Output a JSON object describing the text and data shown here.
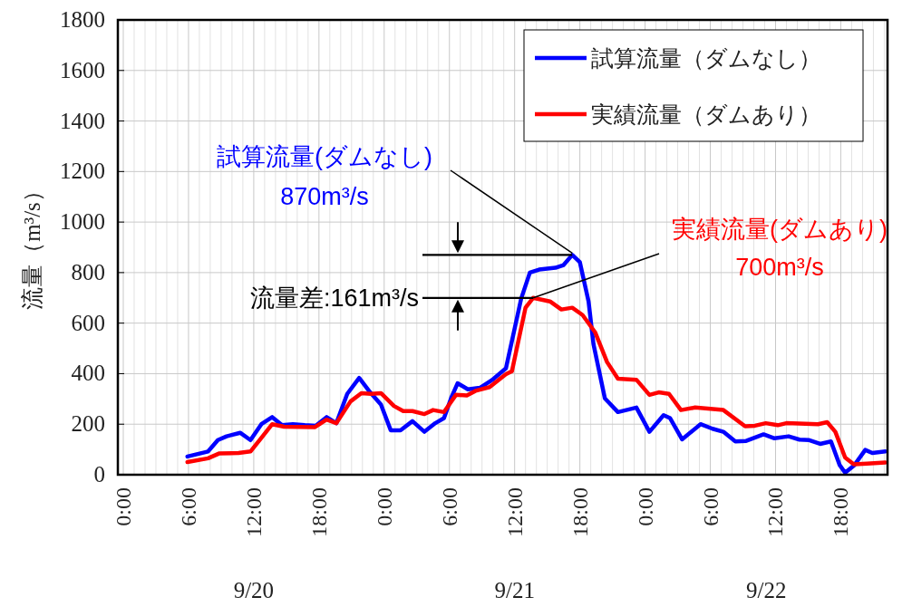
{
  "chart_data": {
    "type": "line",
    "ylabel": "流量（m³/s）",
    "xlim": [
      "--09-19T23:30",
      "--09-22T22:18"
    ],
    "ylim": [
      0,
      1800
    ],
    "yticks": [
      0,
      200,
      400,
      600,
      800,
      1000,
      1200,
      1400,
      1600,
      1800
    ],
    "xticks": [
      {
        "value": "--09-20T00:00",
        "label": "0:00"
      },
      {
        "value": "--09-20T01:00",
        "label": null
      },
      {
        "value": "--09-20T02:00",
        "label": null
      },
      {
        "value": "--09-20T03:00",
        "label": null
      },
      {
        "value": "--09-20T04:00",
        "label": null
      },
      {
        "value": "--09-20T05:00",
        "label": null
      },
      {
        "value": "--09-20T06:00",
        "label": "6:00"
      },
      {
        "value": "--09-20T07:00",
        "label": null
      },
      {
        "value": "--09-20T08:00",
        "label": null
      },
      {
        "value": "--09-20T09:00",
        "label": null
      },
      {
        "value": "--09-20T10:00",
        "label": null
      },
      {
        "value": "--09-20T11:00",
        "label": null
      },
      {
        "value": "--09-20T12:00",
        "label": "12:00"
      },
      {
        "value": "--09-20T13:00",
        "label": null
      },
      {
        "value": "--09-20T14:00",
        "label": null
      },
      {
        "value": "--09-20T15:00",
        "label": null
      },
      {
        "value": "--09-20T16:00",
        "label": null
      },
      {
        "value": "--09-20T17:00",
        "label": null
      },
      {
        "value": "--09-20T18:00",
        "label": "18:00"
      },
      {
        "value": "--09-20T19:00",
        "label": null
      },
      {
        "value": "--09-20T20:00",
        "label": null
      },
      {
        "value": "--09-20T21:00",
        "label": null
      },
      {
        "value": "--09-20T22:00",
        "label": null
      },
      {
        "value": "--09-20T23:00",
        "label": null
      },
      {
        "value": "--09-21T00:00",
        "label": "0:00"
      },
      {
        "value": "--09-21T01:00",
        "label": null
      },
      {
        "value": "--09-21T02:00",
        "label": null
      },
      {
        "value": "--09-21T03:00",
        "label": null
      },
      {
        "value": "--09-21T04:00",
        "label": null
      },
      {
        "value": "--09-21T05:00",
        "label": null
      },
      {
        "value": "--09-21T06:00",
        "label": "6:00"
      },
      {
        "value": "--09-21T07:00",
        "label": null
      },
      {
        "value": "--09-21T08:00",
        "label": null
      },
      {
        "value": "--09-21T09:00",
        "label": null
      },
      {
        "value": "--09-21T10:00",
        "label": null
      },
      {
        "value": "--09-21T11:00",
        "label": null
      },
      {
        "value": "--09-21T12:00",
        "label": "12:00"
      },
      {
        "value": "--09-21T13:00",
        "label": null
      },
      {
        "value": "--09-21T14:00",
        "label": null
      },
      {
        "value": "--09-21T15:00",
        "label": null
      },
      {
        "value": "--09-21T16:00",
        "label": null
      },
      {
        "value": "--09-21T17:00",
        "label": null
      },
      {
        "value": "--09-21T18:00",
        "label": "18:00"
      },
      {
        "value": "--09-21T19:00",
        "label": null
      },
      {
        "value": "--09-21T20:00",
        "label": null
      },
      {
        "value": "--09-21T21:00",
        "label": null
      },
      {
        "value": "--09-21T22:00",
        "label": null
      },
      {
        "value": "--09-21T23:00",
        "label": null
      },
      {
        "value": "--09-22T00:00",
        "label": "0:00"
      },
      {
        "value": "--09-22T01:00",
        "label": null
      },
      {
        "value": "--09-22T02:00",
        "label": null
      },
      {
        "value": "--09-22T03:00",
        "label": null
      },
      {
        "value": "--09-22T04:00",
        "label": null
      },
      {
        "value": "--09-22T05:00",
        "label": null
      },
      {
        "value": "--09-22T06:00",
        "label": "6:00"
      },
      {
        "value": "--09-22T07:00",
        "label": null
      },
      {
        "value": "--09-22T08:00",
        "label": null
      },
      {
        "value": "--09-22T09:00",
        "label": null
      },
      {
        "value": "--09-22T10:00",
        "label": null
      },
      {
        "value": "--09-22T11:00",
        "label": null
      },
      {
        "value": "--09-22T12:00",
        "label": "12:00"
      },
      {
        "value": "--09-22T13:00",
        "label": null
      },
      {
        "value": "--09-22T14:00",
        "label": null
      },
      {
        "value": "--09-22T15:00",
        "label": null
      },
      {
        "value": "--09-22T16:00",
        "label": null
      },
      {
        "value": "--09-22T17:00",
        "label": null
      },
      {
        "value": "--09-22T18:00",
        "label": "18:00"
      },
      {
        "value": "--09-22T19:00",
        "label": null
      },
      {
        "value": "--09-22T20:00",
        "label": null
      },
      {
        "value": "--09-22T21:00",
        "label": null
      },
      {
        "value": "--09-22T22:00",
        "label": null
      }
    ],
    "ref_lines": [
      {
        "axis": "y",
        "value": 870
      },
      {
        "axis": "y",
        "value": 700
      }
    ],
    "grid": true,
    "legend": "top right",
    "line_style": "solid",
    "series": [
      {
        "name": "試算流量（ダムなし）",
        "color": "#0000ff",
        "x": [
          "--09-20T05:54",
          "--09-20T07:48",
          "--09-20T08:42",
          "--09-20T09:30",
          "--09-20T10:45",
          "--09-20T11:42",
          "--09-20T12:42",
          "--09-20T13:42",
          "--09-20T14:36",
          "--09-20T15:36",
          "--09-20T16:42",
          "--09-20T17:42",
          "--09-20T18:42",
          "--09-20T19:36",
          "--09-20T20:36",
          "--09-20T21:42",
          "--09-20T22:36",
          "--09-20T23:42",
          "--09-21T00:36",
          "--09-21T01:30",
          "--09-21T02:36",
          "--09-21T03:42",
          "--09-21T04:42",
          "--09-21T05:30",
          "--09-21T06:12",
          "--09-21T06:45",
          "--09-21T07:42",
          "--09-21T08:48",
          "--09-21T09:54",
          "--09-21T11:12",
          "--09-21T12:36",
          "--09-21T13:24",
          "--09-21T14:15",
          "--09-21T15:45",
          "--09-21T16:30",
          "--09-21T17:18",
          "--09-21T18:00",
          "--09-21T18:48",
          "--09-21T19:15",
          "--09-21T20:18",
          "--09-21T21:30",
          "--09-21T23:12",
          "--09-22T00:24",
          "--09-22T01:42",
          "--09-22T02:18",
          "--09-22T03:24",
          "--09-22T05:06",
          "--09-22T06:12",
          "--09-22T07:12",
          "--09-22T08:18",
          "--09-22T09:18",
          "--09-22T10:54",
          "--09-22T11:54",
          "--09-22T13:12",
          "--09-22T14:12",
          "--09-22T15:06",
          "--09-22T16:06",
          "--09-22T17:06",
          "--09-22T17:54",
          "--09-22T18:24",
          "--09-22T19:15",
          "--09-22T20:15",
          "--09-22T20:54",
          "--09-22T22:06"
        ],
        "values": [
          72,
          92,
          137,
          152,
          166,
          137,
          200,
          228,
          196,
          200,
          196,
          194,
          228,
          204,
          320,
          383,
          332,
          278,
          176,
          176,
          212,
          170,
          204,
          224,
          308,
          362,
          338,
          344,
          374,
          421,
          697,
          800,
          812,
          819,
          830,
          870,
          841,
          686,
          517,
          302,
          248,
          266,
          170,
          236,
          224,
          140,
          200,
          182,
          170,
          132,
          134,
          160,
          144,
          152,
          139,
          137,
          122,
          132,
          38,
          8,
          38,
          98,
          86,
          92
        ]
      },
      {
        "name": "実績流量（ダムあり）",
        "color": "#ff0000",
        "x": [
          "--09-20T05:54",
          "--09-20T07:48",
          "--09-20T08:48",
          "--09-20T10:36",
          "--09-20T11:42",
          "--09-20T12:42",
          "--09-20T13:42",
          "--09-20T14:48",
          "--09-20T17:36",
          "--09-20T18:42",
          "--09-20T19:36",
          "--09-20T20:54",
          "--09-20T21:54",
          "--09-20T22:48",
          "--09-20T23:42",
          "--09-21T00:54",
          "--09-21T01:45",
          "--09-21T02:36",
          "--09-21T03:42",
          "--09-21T04:30",
          "--09-21T05:30",
          "--09-21T06:36",
          "--09-21T07:36",
          "--09-21T08:24",
          "--09-21T09:42",
          "--09-21T11:12",
          "--09-21T11:45",
          "--09-21T13:00",
          "--09-21T13:42",
          "--09-21T15:15",
          "--09-21T16:18",
          "--09-21T17:18",
          "--09-21T18:15",
          "--09-21T19:24",
          "--09-21T20:30",
          "--09-21T21:30",
          "--09-21T23:12",
          "--09-22T00:24",
          "--09-22T01:15",
          "--09-22T02:12",
          "--09-22T03:18",
          "--09-22T04:36",
          "--09-22T07:12",
          "--09-22T09:12",
          "--09-22T10:06",
          "--09-22T11:06",
          "--09-22T12:12",
          "--09-22T13:00",
          "--09-22T15:54",
          "--09-22T16:45",
          "--09-22T17:30",
          "--09-22T18:24",
          "--09-22T19:12",
          "--09-22T20:24",
          "--09-22T22:06"
        ],
        "values": [
          50,
          65,
          84,
          86,
          92,
          146,
          200,
          190,
          188,
          218,
          204,
          290,
          323,
          320,
          323,
          272,
          252,
          252,
          240,
          256,
          248,
          316,
          314,
          332,
          347,
          398,
          410,
          661,
          700,
          686,
          654,
          661,
          632,
          564,
          446,
          380,
          376,
          316,
          326,
          320,
          256,
          266,
          256,
          192,
          194,
          204,
          196,
          204,
          200,
          208,
          170,
          68,
          41,
          44,
          48
        ]
      }
    ],
    "annotations": [
      {
        "text": "試算流量(ダムなし)\n870m³/s",
        "x": "--09-21T17:18",
        "y": 870
      },
      {
        "text": "実績流量(ダムあり)\n700m³/s",
        "x": "--09-21T13:42",
        "y": 700
      },
      "流量差:161m³/s",
      "9/20",
      "9/21",
      "9/22"
    ]
  }
}
